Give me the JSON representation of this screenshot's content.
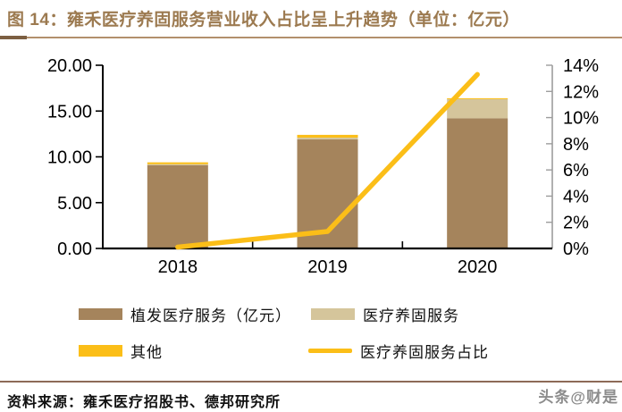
{
  "title": "图 14：雍禾医疗养固服务营业收入占比呈上升趋势（单位：亿元）",
  "chart_data": {
    "type": "bar",
    "subtype": "stacked-bars-with-right-axis-line",
    "title": "雍禾医疗养固服务营业收入占比呈上升趋势",
    "unit": "亿元",
    "categories": [
      "2018",
      "2019",
      "2020"
    ],
    "series": [
      {
        "kind": "bar",
        "name": "植发医疗服务（亿元）",
        "color": "#A5845C",
        "axis": "left",
        "values": [
          9.1,
          11.9,
          14.2
        ]
      },
      {
        "kind": "bar",
        "name": "医疗养固服务",
        "color": "#D5C59B",
        "axis": "left",
        "values": [
          0.1,
          0.2,
          2.1
        ]
      },
      {
        "kind": "bar",
        "name": "其他",
        "color": "#FBBE18",
        "axis": "left",
        "values": [
          0.2,
          0.3,
          0.1
        ]
      },
      {
        "kind": "line",
        "name": "医疗养固服务占比",
        "color": "#FBBE18",
        "axis": "right",
        "values": [
          0.1,
          1.3,
          13.3
        ]
      }
    ],
    "left_axis": {
      "min": 0,
      "max": 20,
      "ticks": [
        {
          "value": 20,
          "label": "20.00"
        },
        {
          "value": 15,
          "label": "15.00"
        },
        {
          "value": 10,
          "label": "10.00"
        },
        {
          "value": 5,
          "label": "5.00"
        },
        {
          "value": 0,
          "label": "0.00"
        }
      ]
    },
    "right_axis": {
      "min": 0,
      "max": 14,
      "ticks": [
        {
          "value": 14,
          "label": "14%"
        },
        {
          "value": 12,
          "label": "12%"
        },
        {
          "value": 10,
          "label": "10%"
        },
        {
          "value": 8,
          "label": "8%"
        },
        {
          "value": 6,
          "label": "6%"
        },
        {
          "value": 4,
          "label": "4%"
        },
        {
          "value": 2,
          "label": "2%"
        },
        {
          "value": 0,
          "label": "0%"
        }
      ]
    },
    "grid": false,
    "legend_position": "bottom"
  },
  "legend": {
    "items": [
      {
        "label": "植发医疗服务（亿元）",
        "swatch": "rect",
        "color": "#A5845C"
      },
      {
        "label": "医疗养固服务",
        "swatch": "rect",
        "color": "#D5C59B"
      },
      {
        "label": "其他",
        "swatch": "rect",
        "color": "#FBBE18"
      },
      {
        "label": "医疗养固服务占比",
        "swatch": "line",
        "color": "#FBBE18"
      }
    ]
  },
  "footer": {
    "source": "资料来源：雍禾医疗招股书、德邦研究所",
    "watermark": "头条@财是"
  },
  "colors": {
    "title_text": "#9C7A50",
    "title_rule": "#B2906C",
    "title_rule_dark": "#7C5F42",
    "footer_rule": "#8D6A57",
    "axis_left": "#000000",
    "axis_right": "#9C9C9C",
    "axis_label": "#000000",
    "watermark": "#8C8C8C"
  }
}
